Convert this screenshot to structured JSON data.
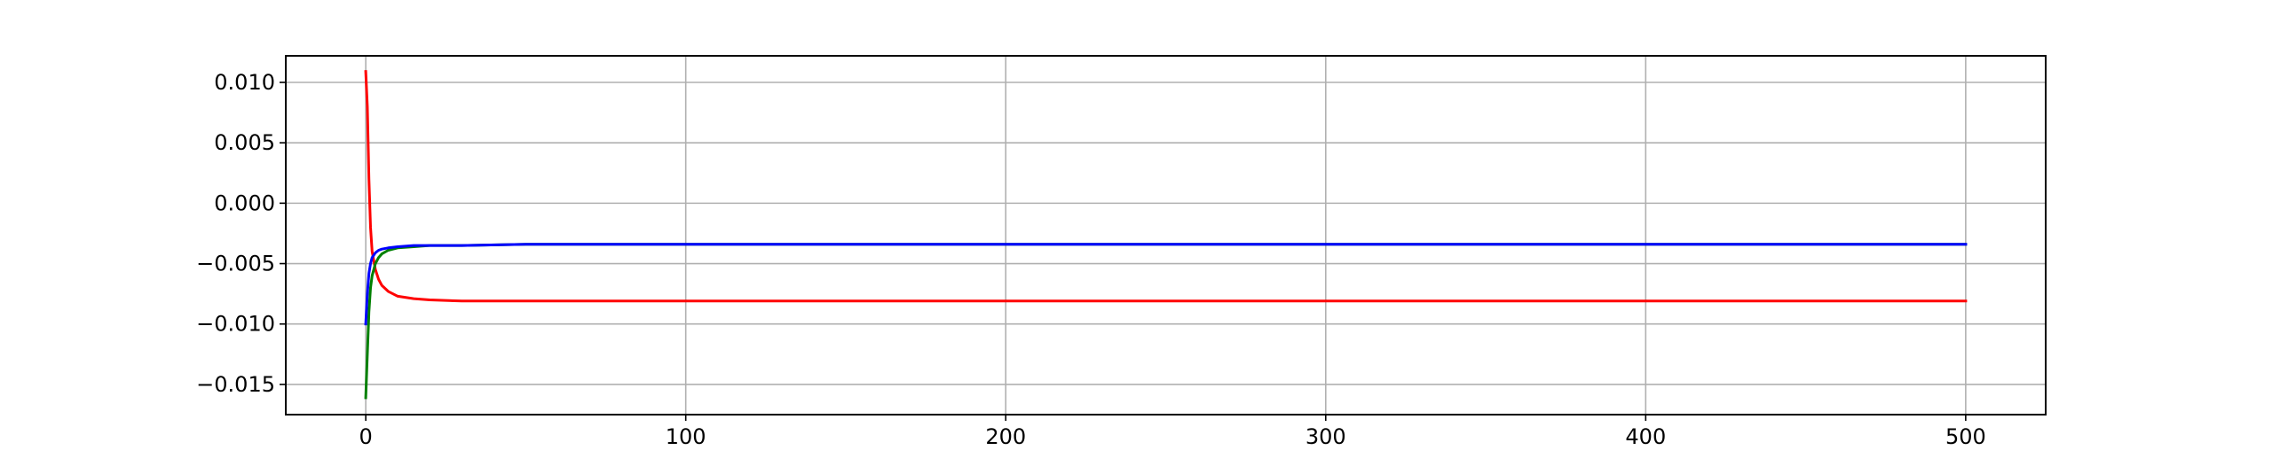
{
  "chart_data": {
    "type": "line",
    "title": "",
    "xlabel": "",
    "ylabel": "",
    "xlim": [
      -25,
      525
    ],
    "ylim": [
      -0.0175,
      0.0122
    ],
    "grid": true,
    "xticks": [
      0,
      100,
      200,
      300,
      400,
      500
    ],
    "xtick_labels": [
      "0",
      "100",
      "200",
      "300",
      "400",
      "500"
    ],
    "yticks": [
      0.01,
      0.005,
      0.0,
      -0.005,
      -0.01,
      -0.015
    ],
    "ytick_labels": [
      "0.010",
      "0.005",
      "0.000",
      "−0.005",
      "−0.010",
      "−0.015"
    ],
    "series": [
      {
        "color": "#ff0000",
        "x": [
          0,
          0.5,
          1,
          1.5,
          2,
          3,
          4,
          5,
          7,
          10,
          15,
          20,
          30,
          50,
          75,
          100,
          150,
          200,
          300,
          400,
          500
        ],
        "y": [
          0.0109,
          0.008,
          0.002,
          -0.002,
          -0.004,
          -0.0055,
          -0.0063,
          -0.0068,
          -0.0073,
          -0.0077,
          -0.0079,
          -0.008,
          -0.0081,
          -0.0081,
          -0.0081,
          -0.0081,
          -0.0081,
          -0.0081,
          -0.0081,
          -0.0081,
          -0.0081
        ]
      },
      {
        "color": "#008000",
        "x": [
          0,
          0.5,
          1,
          1.5,
          2,
          3,
          4,
          5,
          7,
          10,
          15,
          20,
          30,
          50,
          100,
          200,
          300,
          400,
          500
        ],
        "y": [
          -0.0161,
          -0.0125,
          -0.009,
          -0.007,
          -0.006,
          -0.005,
          -0.0045,
          -0.0042,
          -0.0039,
          -0.0037,
          -0.0036,
          -0.0035,
          -0.0035,
          -0.0034,
          -0.0034,
          -0.0034,
          -0.0034,
          -0.0034,
          -0.0034
        ]
      },
      {
        "color": "#0000ff",
        "x": [
          0,
          0.5,
          1,
          1.5,
          2,
          3,
          4,
          5,
          7,
          10,
          15,
          20,
          30,
          50,
          100,
          200,
          300,
          400,
          500
        ],
        "y": [
          -0.01,
          -0.0075,
          -0.0058,
          -0.005,
          -0.0045,
          -0.0041,
          -0.0039,
          -0.0038,
          -0.0037,
          -0.0036,
          -0.0035,
          -0.0035,
          -0.0035,
          -0.0034,
          -0.0034,
          -0.0034,
          -0.0034,
          -0.0034,
          -0.0034
        ]
      }
    ]
  }
}
